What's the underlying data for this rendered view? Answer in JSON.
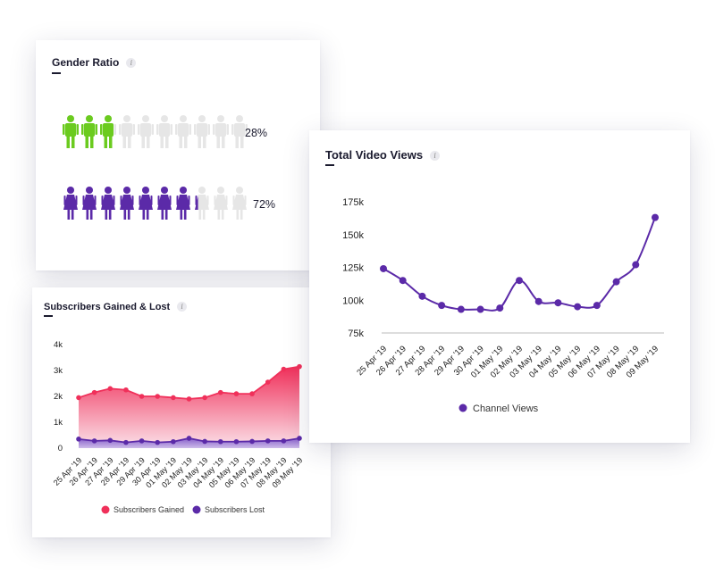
{
  "gender": {
    "title": "Gender Ratio",
    "info_icon": "i",
    "male": {
      "percent_label": "28%",
      "value": 28,
      "color": "#6bcb1f"
    },
    "female": {
      "percent_label": "72%",
      "value": 72,
      "color": "#5b2aa8"
    },
    "inactive_color": "#e6e6e6",
    "icons_per_row": 10
  },
  "subs": {
    "title": "Subscribers Gained & Lost",
    "info_icon": "i"
  },
  "views": {
    "title": "Total Video Views",
    "info_icon": "i"
  },
  "chart_data": [
    {
      "type": "line",
      "title": "Total Video Views",
      "categories": [
        "25 Apr '19",
        "26 Apr '19",
        "27 Apr '19",
        "28 Apr '19",
        "29 Apr '19",
        "30 Apr '19",
        "01 May '19",
        "02 May '19",
        "03 May '19",
        "04 May '19",
        "05 May '19",
        "06 May '19",
        "07 May '19",
        "08 May '19",
        "09 May '19"
      ],
      "series": [
        {
          "name": "Channel Views",
          "color": "#5b2aa8",
          "values": [
            124000,
            115000,
            103000,
            96000,
            93000,
            93000,
            94000,
            115000,
            99000,
            98000,
            95000,
            96000,
            114000,
            127000,
            163000
          ]
        }
      ],
      "ylim": [
        75000,
        175000
      ],
      "yticks": [
        "75k",
        "100k",
        "125k",
        "150k",
        "175k"
      ],
      "ytick_values": [
        75000,
        100000,
        125000,
        150000,
        175000
      ],
      "legend_position": "bottom"
    },
    {
      "type": "area",
      "title": "Subscribers Gained & Lost",
      "categories": [
        "25 Apr '19",
        "26 Apr '19",
        "27 Apr '19",
        "28 Apr '19",
        "29 Apr '19",
        "30 Apr '19",
        "01 May '19",
        "02 May '19",
        "03 May '19",
        "04 May '19",
        "05 May '19",
        "06 May '19",
        "07 May '19",
        "08 May '19",
        "09 May '19"
      ],
      "series": [
        {
          "name": "Subscribers Gained",
          "color": "#f0305a",
          "values": [
            1950,
            2150,
            2300,
            2250,
            2000,
            2000,
            1950,
            1900,
            1950,
            2150,
            2100,
            2100,
            2550,
            3050,
            3150
          ]
        },
        {
          "name": "Subscribers Lost",
          "color": "#5b2aa8",
          "values": [
            350,
            280,
            300,
            220,
            280,
            220,
            250,
            380,
            260,
            250,
            250,
            260,
            280,
            280,
            380
          ]
        }
      ],
      "ylim": [
        0,
        4000
      ],
      "yticks": [
        "0",
        "1k",
        "2k",
        "3k",
        "4k"
      ],
      "ytick_values": [
        0,
        1000,
        2000,
        3000,
        4000
      ],
      "legend_position": "bottom"
    }
  ]
}
